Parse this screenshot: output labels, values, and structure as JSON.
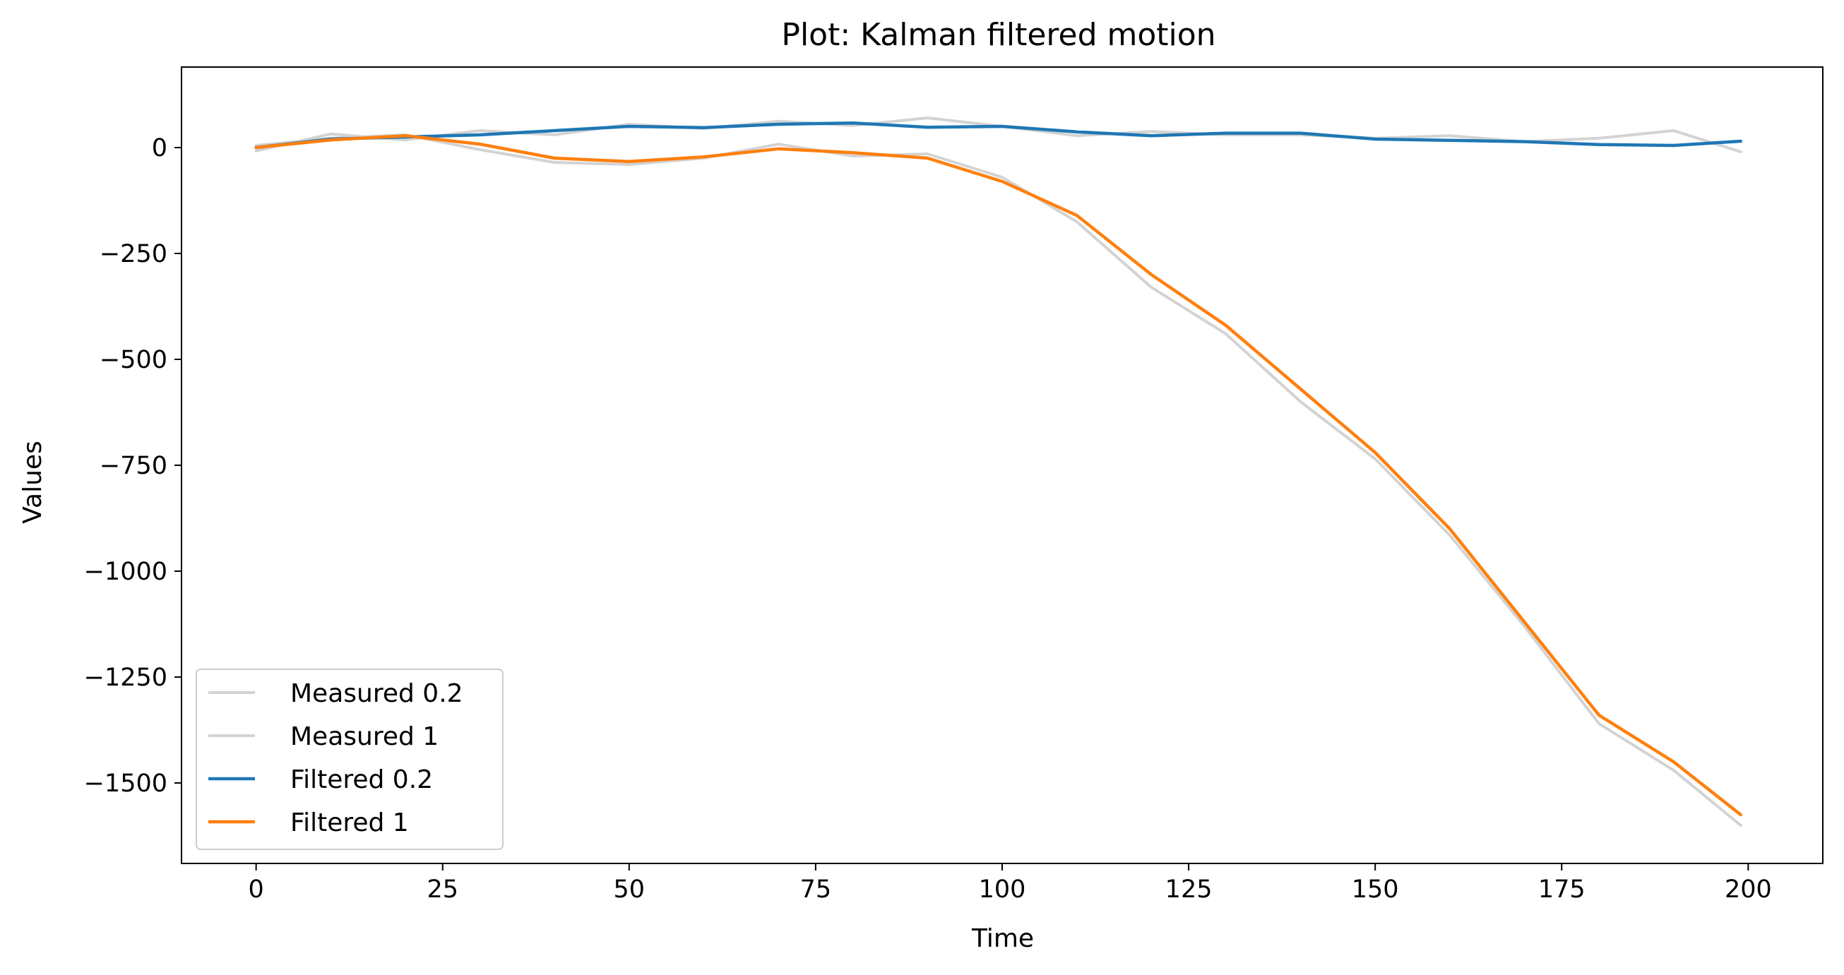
{
  "chart_data": {
    "type": "line",
    "title": "Plot: Kalman filtered motion",
    "xlabel": "Time",
    "ylabel": "Values",
    "xlim": [
      -10,
      210
    ],
    "ylim": [
      -1690,
      190
    ],
    "xticks": [
      0,
      25,
      50,
      75,
      100,
      125,
      150,
      175,
      200
    ],
    "yticks": [
      0,
      -250,
      -500,
      -750,
      -1000,
      -1250,
      -1500
    ],
    "xtick_labels": [
      "0",
      "25",
      "50",
      "75",
      "100",
      "125",
      "150",
      "175",
      "200"
    ],
    "ytick_labels": [
      "0",
      "−250",
      "−500",
      "−750",
      "−1000",
      "−1250",
      "−1500"
    ],
    "grid": false,
    "legend_position": "lower-left",
    "x": [
      0,
      10,
      20,
      30,
      40,
      50,
      60,
      70,
      80,
      90,
      100,
      110,
      120,
      130,
      140,
      150,
      160,
      170,
      180,
      190,
      199
    ],
    "series": [
      {
        "name": "Measured 0.2",
        "color": "#d3d3d3",
        "values": [
          -8,
          32,
          18,
          40,
          30,
          55,
          45,
          62,
          52,
          70,
          50,
          28,
          38,
          30,
          30,
          22,
          28,
          14,
          22,
          40,
          -10
        ]
      },
      {
        "name": "Measured 1",
        "color": "#d3d3d3",
        "values": [
          5,
          22,
          30,
          -5,
          -35,
          -40,
          -25,
          8,
          -20,
          -15,
          -70,
          -175,
          -330,
          -440,
          -600,
          -735,
          -915,
          -1130,
          -1360,
          -1470,
          -1600
        ]
      },
      {
        "name": "Filtered 0.2",
        "color": "#1f77b4",
        "values": [
          0,
          20,
          25,
          30,
          40,
          50,
          47,
          55,
          58,
          48,
          50,
          37,
          28,
          34,
          34,
          20,
          17,
          14,
          7,
          5,
          15
        ]
      },
      {
        "name": "Filtered 1",
        "color": "#ff7f0e",
        "values": [
          0,
          18,
          28,
          8,
          -25,
          -33,
          -22,
          -3,
          -12,
          -25,
          -80,
          -160,
          -300,
          -420,
          -570,
          -720,
          -900,
          -1120,
          -1340,
          -1450,
          -1575
        ]
      }
    ]
  }
}
